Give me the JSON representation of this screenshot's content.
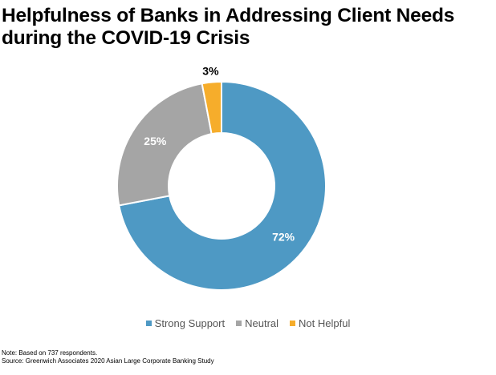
{
  "chart_data": {
    "type": "pie",
    "title_lines": [
      "Helpfulness of Banks in Addressing Client Needs",
      "during the COVID-19 Crisis"
    ],
    "donut": true,
    "categories": [
      "Strong Support",
      "Neutral",
      "Not Helpful"
    ],
    "values": [
      72,
      25,
      3
    ],
    "labels": [
      "72%",
      "25%",
      "3%"
    ],
    "colors": [
      "#4e99c4",
      "#a5a5a5",
      "#f6ad2b"
    ],
    "legend_position": "bottom"
  },
  "notes": {
    "note": "Note: Based on 737 respondents.",
    "source": "Source: Greenwich Associates 2020 Asian Large Corporate Banking Study"
  }
}
